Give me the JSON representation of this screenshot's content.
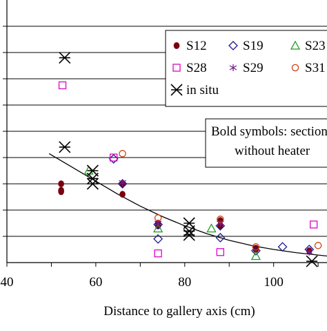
{
  "chart_data": {
    "type": "scatter",
    "xlabel": "Distance to gallery axis (cm)",
    "xlim": [
      40,
      112
    ],
    "ylim": [
      0,
      10
    ],
    "x_ticks": [
      40,
      60,
      80,
      100
    ],
    "x_tick_labels": [
      "40",
      "60",
      "80",
      "100"
    ],
    "y_gridlines": [
      1,
      2,
      3,
      4,
      5,
      6,
      7,
      8,
      9
    ],
    "grid": "horizontal",
    "legend_position": "top-right",
    "annotation": "Bold symbols: section\nwithout heater",
    "colors": {
      "S12": "#7a0010",
      "S19": "#1a1a8c",
      "S23": "#1f9a1f",
      "S28": "#e000c8",
      "S29": "#7a1a8c",
      "S31": "#d04010",
      "in situ": "#000000",
      "trend": "#000000"
    },
    "series": [
      {
        "name": "S12",
        "marker": "filled-circle",
        "points": [
          [
            52.2,
            3.0
          ],
          [
            52.2,
            2.75
          ],
          [
            52.2,
            2.7
          ],
          [
            66,
            3.0
          ],
          [
            66,
            2.6
          ],
          [
            74,
            1.4
          ],
          [
            74,
            1.5
          ],
          [
            88,
            1.4
          ],
          [
            88,
            1.6
          ],
          [
            96,
            0.5
          ],
          [
            96,
            0.55
          ],
          [
            108,
            0.45
          ]
        ]
      },
      {
        "name": "S19",
        "marker": "diamond",
        "points": [
          [
            64,
            3.95
          ],
          [
            66,
            3.0
          ],
          [
            74,
            1.45
          ],
          [
            74,
            0.9
          ],
          [
            88,
            1.4
          ],
          [
            88,
            0.95
          ],
          [
            96,
            0.45
          ],
          [
            102,
            0.6
          ],
          [
            108,
            0.5
          ]
        ]
      },
      {
        "name": "S23",
        "marker": "triangle",
        "points": [
          [
            58.4,
            3.5
          ],
          [
            74,
            1.3
          ],
          [
            86,
            1.3
          ],
          [
            96,
            0.25
          ]
        ]
      },
      {
        "name": "S28",
        "marker": "square",
        "points": [
          [
            52.5,
            6.75
          ],
          [
            64,
            4.0
          ],
          [
            74,
            0.35
          ],
          [
            88,
            0.4
          ],
          [
            109,
            1.45
          ]
        ]
      },
      {
        "name": "S29",
        "marker": "asterisk",
        "points": [
          [
            66,
            3.05
          ],
          [
            74,
            1.5
          ],
          [
            88,
            1.5
          ],
          [
            108,
            0.4
          ]
        ]
      },
      {
        "name": "S31",
        "marker": "open-circle",
        "points": [
          [
            66,
            4.15
          ],
          [
            74,
            1.7
          ],
          [
            88,
            1.65
          ],
          [
            96,
            0.6
          ],
          [
            110,
            0.65
          ]
        ]
      },
      {
        "name": "in situ",
        "marker": "star",
        "points": [
          [
            53,
            7.8
          ],
          [
            53,
            4.4
          ],
          [
            59.3,
            3.5
          ],
          [
            59.3,
            3.2
          ],
          [
            59.3,
            3.0
          ],
          [
            81,
            1.5
          ],
          [
            81,
            1.2
          ],
          [
            81,
            1.05
          ],
          [
            108.6,
            0.05
          ]
        ]
      }
    ],
    "trend_line": [
      [
        49.5,
        4.15
      ],
      [
        55,
        3.6
      ],
      [
        60,
        3.1
      ],
      [
        65,
        2.6
      ],
      [
        70,
        2.15
      ],
      [
        75,
        1.75
      ],
      [
        80,
        1.4
      ],
      [
        85,
        1.1
      ],
      [
        90,
        0.85
      ],
      [
        95,
        0.65
      ],
      [
        100,
        0.5
      ],
      [
        105,
        0.38
      ],
      [
        112,
        0.25
      ]
    ]
  }
}
